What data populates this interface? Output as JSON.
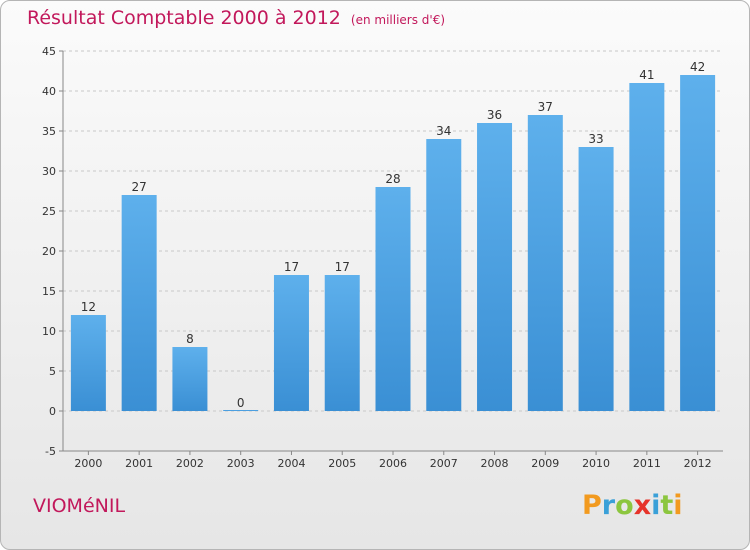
{
  "chart_data": {
    "type": "bar",
    "title": "Résultat Comptable 2000 à 2012",
    "unit": "(en milliers d'€)",
    "categories": [
      "2000",
      "2001",
      "2002",
      "2003",
      "2004",
      "2005",
      "2006",
      "2007",
      "2008",
      "2009",
      "2010",
      "2011",
      "2012"
    ],
    "values": [
      12,
      27,
      8,
      0,
      17,
      17,
      28,
      34,
      36,
      37,
      33,
      41,
      42
    ],
    "ylim": [
      -5,
      45
    ],
    "yticks": [
      -5,
      0,
      5,
      10,
      15,
      20,
      25,
      30,
      35,
      40,
      45
    ],
    "xlabel": "",
    "ylabel": "",
    "bar_color": "#3a8fd4",
    "bar_color_light": "#5eb0ec",
    "grid": true
  },
  "footer": {
    "town": "VIOMéNIL",
    "logo": "Proxiti",
    "logo_colors": [
      "#f29a1f",
      "#3aa0d8",
      "#8cc63f",
      "#e6332a",
      "#3aa0d8",
      "#8cc63f",
      "#f29a1f"
    ]
  }
}
